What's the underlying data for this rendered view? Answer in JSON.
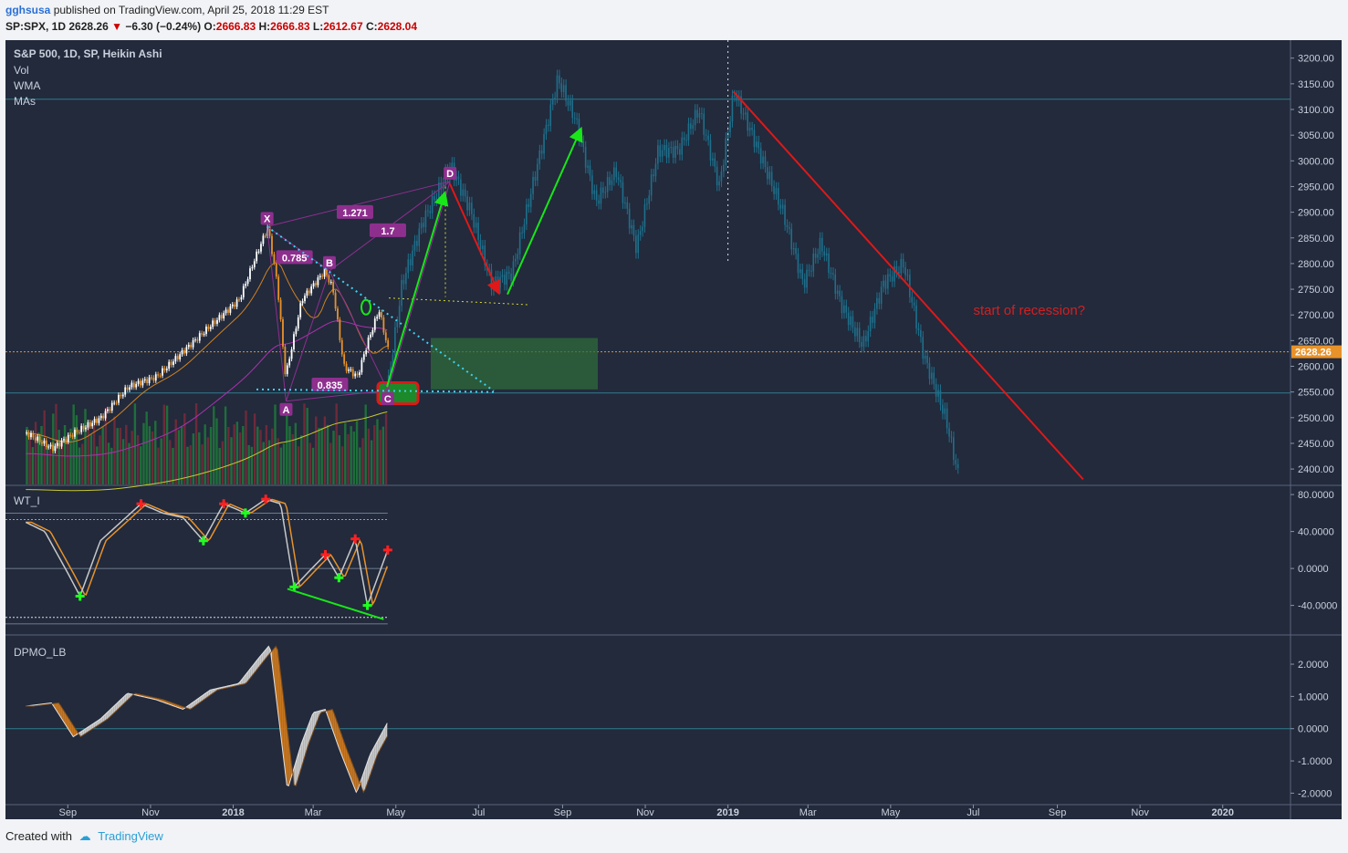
{
  "header": {
    "user": "gghsusa",
    "published": "published on TradingView.com, April 25, 2018 11:29 EST",
    "symbol_line": "SP:SPX, 1D",
    "last": "2628.26",
    "change": "−6.30 (−0.24%)",
    "o_label": "O:",
    "o_val": "2666.83",
    "h_label": "H:",
    "h_val": "2666.83",
    "l_label": "L:",
    "l_val": "2612.67",
    "c_label": "C:",
    "c_val": "2628.04"
  },
  "legend": {
    "title": "S&P 500, 1D, SP, Heikin Ashi",
    "items": [
      "Vol",
      "WMA",
      "MAs"
    ]
  },
  "footer": {
    "created": "Created with",
    "brand": "TradingView"
  },
  "colors": {
    "background": "#222a3c",
    "up_candle": "#ffffff",
    "down_candle": "#e8922a",
    "projection": "#1f6f8b",
    "red_line": "#e01818",
    "green_arrow": "#19e619",
    "cyan_dotted": "#3fd2f0",
    "pattern": "#8e2f8e"
  },
  "chart_data": [
    {
      "type": "candlestick",
      "title": "S&P 500, 1D, SP, Heikin Ashi",
      "y_axis_ticks": [
        2400,
        2450,
        2500,
        2550,
        2600,
        2650,
        2700,
        2750,
        2800,
        2850,
        2900,
        2950,
        3000,
        3050,
        3100,
        3150,
        3200
      ],
      "ylim": [
        2370,
        3235
      ],
      "x_axis_labels": [
        "Sep",
        "Nov",
        "2018",
        "Mar",
        "May",
        "Jul",
        "Sep",
        "Nov",
        "2019",
        "Mar",
        "May",
        "Jul",
        "Sep",
        "Nov",
        "2020"
      ],
      "current_price": 2628.26,
      "price_series": {
        "name": "historical",
        "x": [
          "2017-08-01",
          "2017-08-20",
          "2017-09-05",
          "2017-09-25",
          "2017-10-15",
          "2017-11-05",
          "2017-11-25",
          "2017-12-15",
          "2018-01-05",
          "2018-01-15",
          "2018-01-26",
          "2018-02-02",
          "2018-02-08",
          "2018-02-20",
          "2018-03-09",
          "2018-03-15",
          "2018-03-23",
          "2018-04-02",
          "2018-04-10",
          "2018-04-18",
          "2018-04-25"
        ],
        "values": [
          2470,
          2440,
          2470,
          2500,
          2560,
          2580,
          2630,
          2680,
          2730,
          2800,
          2872,
          2760,
          2580,
          2730,
          2786,
          2750,
          2600,
          2580,
          2650,
          2710,
          2628
        ]
      },
      "projection": {
        "name": "projection",
        "x": [
          "2018-04-25",
          "2018-05-05",
          "2018-05-20",
          "2018-06-10",
          "2018-06-25",
          "2018-07-10",
          "2018-07-25",
          "2018-08-10",
          "2018-08-28",
          "2018-09-10",
          "2018-09-25",
          "2018-10-10",
          "2018-10-25",
          "2018-11-10",
          "2018-11-25",
          "2018-12-10",
          "2018-12-25",
          "2019-01-05",
          "2019-01-20",
          "2019-02-10",
          "2019-02-25",
          "2019-03-10",
          "2019-03-25",
          "2019-04-10",
          "2019-04-25",
          "2019-05-10",
          "2019-05-25",
          "2019-06-10",
          "2019-06-20"
        ],
        "values": [
          2570,
          2760,
          2880,
          2990,
          2900,
          2760,
          2780,
          2960,
          3160,
          3080,
          2920,
          2980,
          2830,
          3020,
          3020,
          3100,
          2950,
          3135,
          3040,
          2900,
          2760,
          2840,
          2720,
          2640,
          2760,
          2800,
          2620,
          2500,
          2380
        ]
      },
      "annotations": {
        "xabcd": [
          {
            "label": "X",
            "date": "2018-01-26",
            "price": 2872
          },
          {
            "label": "A",
            "date": "2018-02-09",
            "price": 2532
          },
          {
            "label": "B",
            "date": "2018-03-13",
            "price": 2786
          },
          {
            "label": "C",
            "date": "2018-04-25",
            "price": 2553
          },
          {
            "label": "D",
            "date": "2018-06-10",
            "price": 2960
          }
        ],
        "ratios": [
          "0.785",
          "1.271",
          "1.7",
          "0.835"
        ],
        "text": "start of recession?",
        "horizontal_line_price": 3120,
        "support_line_price": 2548
      }
    },
    {
      "type": "line",
      "title": "WT_I",
      "y_axis_ticks": [
        -40,
        0,
        40,
        80
      ],
      "y_axis_labels": [
        "-40.0000",
        "0.0000",
        "40.0000",
        "80.0000"
      ],
      "ylim": [
        -70,
        88
      ],
      "series": [
        {
          "x": [
            "2017-08-01",
            "2017-08-15",
            "2017-09-01",
            "2017-09-10",
            "2017-09-25",
            "2017-10-10",
            "2017-10-25",
            "2017-11-10",
            "2017-11-25",
            "2017-12-10",
            "2017-12-25",
            "2018-01-10",
            "2018-01-25",
            "2018-02-05",
            "2018-02-15",
            "2018-02-28",
            "2018-03-10",
            "2018-03-20",
            "2018-04-01",
            "2018-04-10",
            "2018-04-25"
          ],
          "values": [
            50,
            40,
            -5,
            -30,
            30,
            50,
            70,
            60,
            55,
            30,
            70,
            60,
            75,
            70,
            -20,
            0,
            15,
            -10,
            32,
            -40,
            20
          ]
        }
      ]
    },
    {
      "type": "area",
      "title": "DPMO_LB",
      "y_axis_ticks": [
        -2,
        -1,
        0,
        1,
        2
      ],
      "y_axis_labels": [
        "-2.0000",
        "-1.0000",
        "0.0000",
        "1.0000",
        "2.0000"
      ],
      "ylim": [
        -2.3,
        2.85
      ],
      "series": [
        {
          "x": [
            "2017-08-01",
            "2017-08-20",
            "2017-09-05",
            "2017-09-25",
            "2017-10-15",
            "2017-11-05",
            "2017-11-25",
            "2017-12-15",
            "2018-01-05",
            "2018-01-20",
            "2018-01-28",
            "2018-02-10",
            "2018-02-20",
            "2018-03-01",
            "2018-03-10",
            "2018-03-20",
            "2018-04-02",
            "2018-04-12",
            "2018-04-25"
          ],
          "values": [
            0.7,
            0.8,
            -0.25,
            0.3,
            1.1,
            0.9,
            0.6,
            1.2,
            1.4,
            2.2,
            2.6,
            -1.9,
            -0.5,
            0.5,
            0.6,
            -0.6,
            -2.0,
            -0.8,
            0.2
          ]
        }
      ]
    }
  ]
}
